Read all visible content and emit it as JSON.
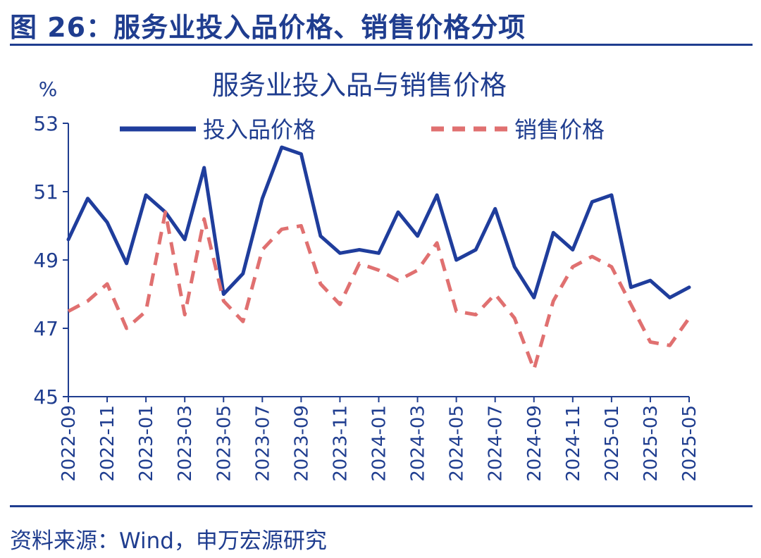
{
  "figure_title": "图 26：服务业投入品价格、销售价格分项",
  "source": "资料来源：Wind，申万宏源研究",
  "chart_data": {
    "type": "line",
    "title": "服务业投入品与销售价格",
    "ylabel": "%",
    "ylim": [
      45,
      53
    ],
    "yticks": [
      45,
      47,
      49,
      51,
      53
    ],
    "x": [
      "2022-09",
      "2022-10",
      "2022-11",
      "2022-12",
      "2023-01",
      "2023-02",
      "2023-03",
      "2023-04",
      "2023-05",
      "2023-06",
      "2023-07",
      "2023-08",
      "2023-09",
      "2023-10",
      "2023-11",
      "2023-12",
      "2024-01",
      "2024-02",
      "2024-03",
      "2024-04",
      "2024-05",
      "2024-06",
      "2024-07",
      "2024-08",
      "2024-09",
      "2024-10",
      "2024-11",
      "2024-12",
      "2025-01",
      "2025-02",
      "2025-03",
      "2025-04",
      "2025-05"
    ],
    "xticks": [
      "2022-09",
      "2022-11",
      "2023-01",
      "2023-03",
      "2023-05",
      "2023-07",
      "2023-09",
      "2023-11",
      "2024-01",
      "2024-03",
      "2024-05",
      "2024-07",
      "2024-09",
      "2024-11",
      "2025-01",
      "2025-03",
      "2025-05"
    ],
    "grid": false,
    "legend": "top",
    "series": [
      {
        "name": "投入品价格",
        "color": "#1f3d9c",
        "style": "solid",
        "values": [
          49.6,
          50.8,
          50.1,
          48.9,
          50.9,
          50.4,
          49.6,
          51.7,
          48.0,
          48.6,
          50.8,
          52.3,
          52.1,
          49.7,
          49.2,
          49.3,
          49.2,
          50.4,
          49.7,
          50.9,
          49.0,
          49.3,
          50.5,
          48.8,
          47.9,
          49.8,
          49.3,
          50.7,
          50.9,
          48.2,
          48.4,
          47.9,
          48.2
        ]
      },
      {
        "name": "销售价格",
        "color": "#e07070",
        "style": "dashed",
        "values": [
          47.5,
          47.8,
          48.3,
          47.0,
          47.5,
          50.4,
          47.4,
          50.2,
          47.8,
          47.2,
          49.3,
          49.9,
          50.0,
          48.3,
          47.7,
          48.9,
          48.7,
          48.4,
          48.7,
          49.5,
          47.5,
          47.4,
          48.0,
          47.3,
          45.8,
          47.8,
          48.8,
          49.1,
          48.8,
          47.7,
          46.6,
          46.5,
          47.3
        ]
      }
    ]
  }
}
